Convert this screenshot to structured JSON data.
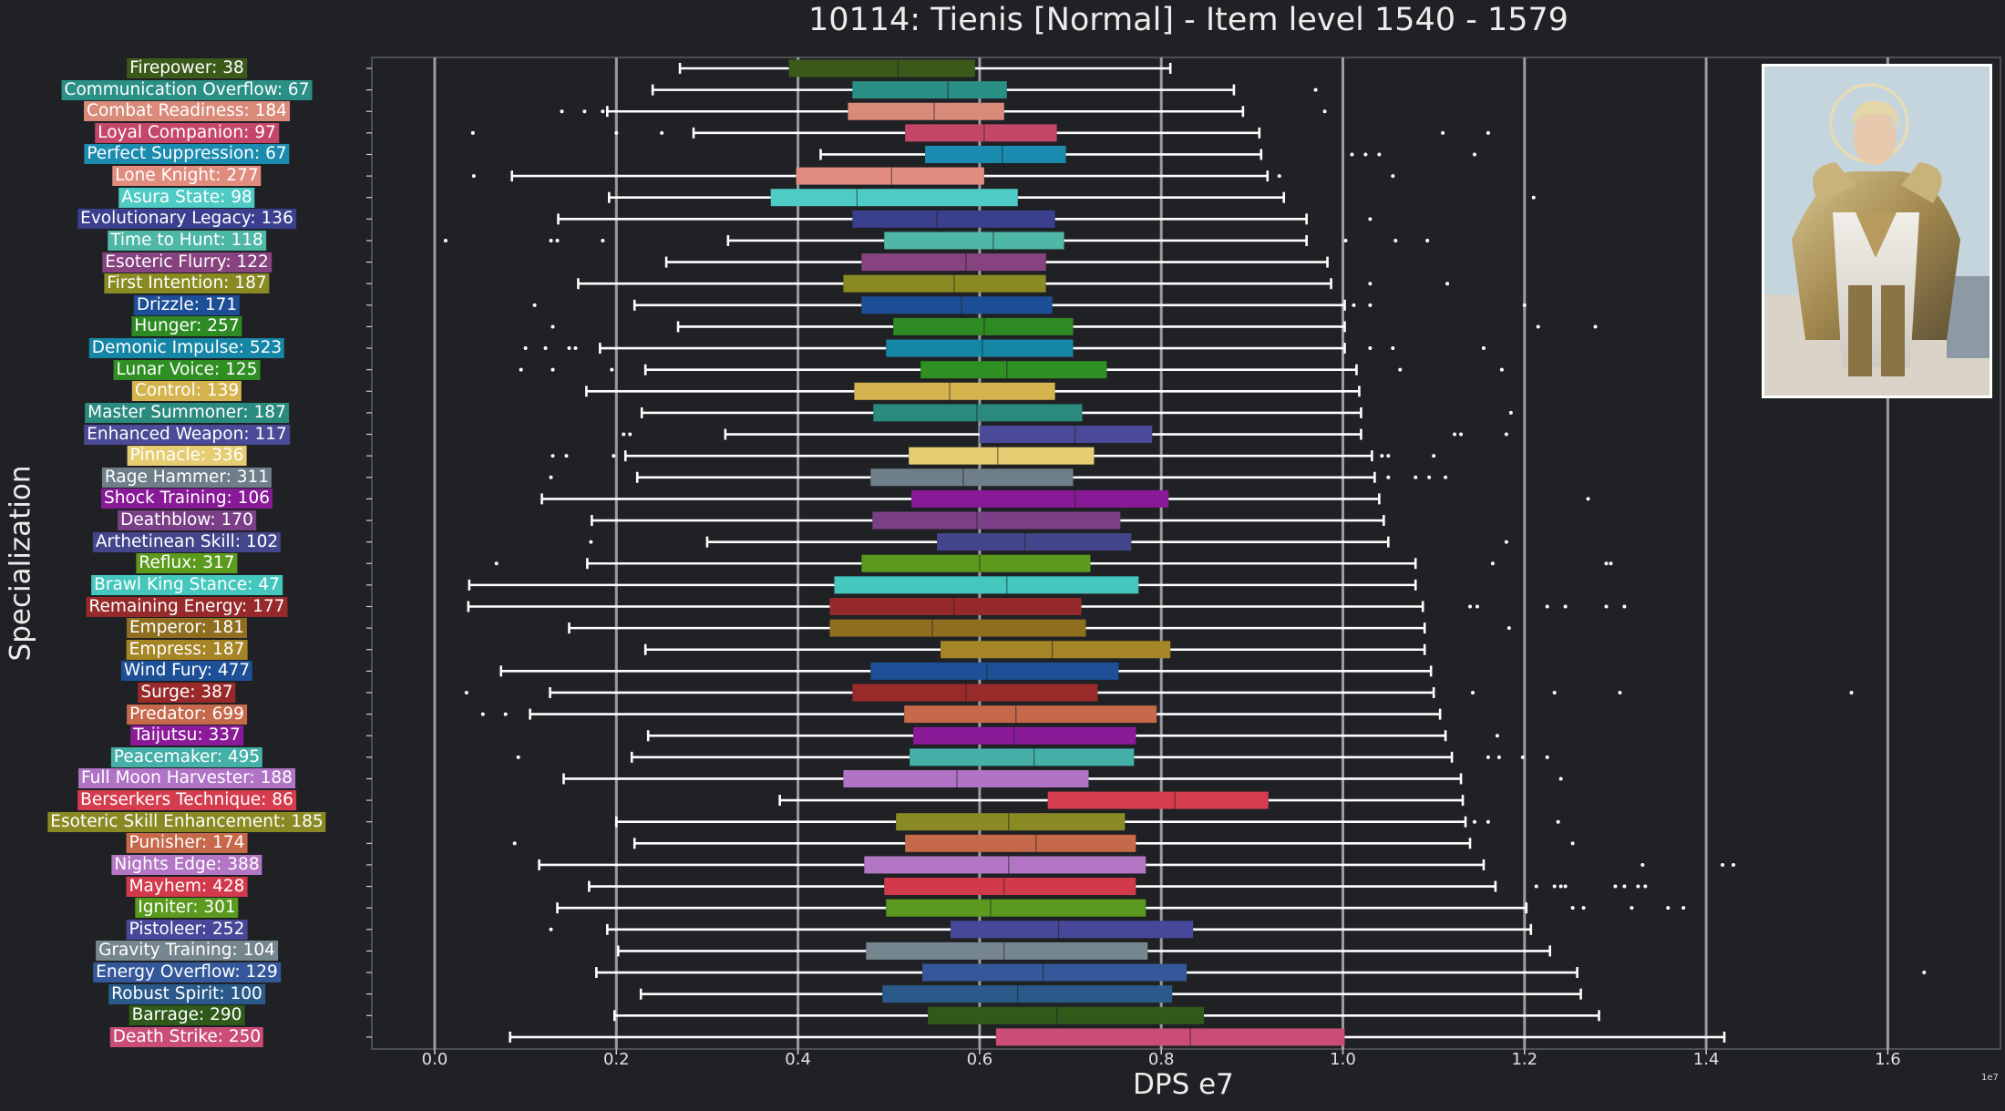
{
  "title": "10114: Tienis [Normal] - Item level 1540 - 1579",
  "chart_data": {
    "type": "box",
    "orientation": "horizontal",
    "xlabel": "DPS e7",
    "ylabel": "Specialization",
    "x_exponent_label": "1e7",
    "xlim": [
      -0.07,
      1.72
    ],
    "x_ticks": [
      0.0,
      0.2,
      0.4,
      0.6,
      0.8,
      1.0,
      1.2,
      1.4,
      1.6
    ],
    "x_tick_labels": [
      "0.0",
      "0.2",
      "0.4",
      "0.6",
      "0.8",
      "1.0",
      "1.2",
      "1.4",
      "1.6"
    ],
    "vertical_lines": [
      0.0,
      0.2,
      0.4,
      0.6,
      0.8,
      1.0,
      1.2,
      1.4,
      1.6
    ],
    "grid": false,
    "background": "#1f2124",
    "whisker_color": "#ffffff",
    "series": [
      {
        "label": "Firepower: 38",
        "color": "#3b5a1a",
        "whislo": 0.27,
        "q1": 0.39,
        "med": 0.51,
        "q3": 0.595,
        "whishi": 0.81,
        "fliers": []
      },
      {
        "label": "Communication Overflow: 67",
        "color": "#2a8f85",
        "whislo": 0.24,
        "q1": 0.46,
        "med": 0.565,
        "q3": 0.63,
        "whishi": 0.88,
        "fliers": [
          0.97
        ]
      },
      {
        "label": "Combat Readiness: 184",
        "color": "#d98a78",
        "whislo": 0.19,
        "q1": 0.455,
        "med": 0.55,
        "q3": 0.627,
        "whishi": 0.89,
        "fliers": [
          0.14,
          0.165,
          0.185,
          0.98
        ]
      },
      {
        "label": "Loyal Companion: 97",
        "color": "#c4476a",
        "whislo": 0.285,
        "q1": 0.518,
        "med": 0.605,
        "q3": 0.685,
        "whishi": 0.908,
        "fliers": [
          0.042,
          0.2,
          0.25,
          1.11,
          1.16
        ]
      },
      {
        "label": "Perfect Suppression: 67",
        "color": "#1b8bb0",
        "whislo": 0.425,
        "q1": 0.54,
        "med": 0.625,
        "q3": 0.695,
        "whishi": 0.91,
        "fliers": [
          1.01,
          1.025,
          1.04,
          1.145
        ]
      },
      {
        "label": "Lone Knight: 277",
        "color": "#e08c7e",
        "whislo": 0.085,
        "q1": 0.398,
        "med": 0.503,
        "q3": 0.605,
        "whishi": 0.917,
        "fliers": [
          0.043,
          0.93,
          1.055
        ]
      },
      {
        "label": "Asura State: 98",
        "color": "#4ecbc4",
        "whislo": 0.192,
        "q1": 0.37,
        "med": 0.465,
        "q3": 0.642,
        "whishi": 0.935,
        "fliers": [
          1.21
        ]
      },
      {
        "label": "Evolutionary Legacy: 136",
        "color": "#3a3f8e",
        "whislo": 0.136,
        "q1": 0.46,
        "med": 0.553,
        "q3": 0.683,
        "whishi": 0.96,
        "fliers": [
          1.03
        ]
      },
      {
        "label": "Time to Hunt: 118",
        "color": "#4fb7a6",
        "whislo": 0.323,
        "q1": 0.495,
        "med": 0.615,
        "q3": 0.693,
        "whishi": 0.96,
        "fliers": [
          0.012,
          0.128,
          0.135,
          0.185,
          1.003,
          1.058,
          1.093
        ]
      },
      {
        "label": "Esoteric Flurry: 122",
        "color": "#87437f",
        "whislo": 0.255,
        "q1": 0.47,
        "med": 0.585,
        "q3": 0.673,
        "whishi": 0.983,
        "fliers": []
      },
      {
        "label": "First Intention: 187",
        "color": "#8a8a22",
        "whislo": 0.158,
        "q1": 0.45,
        "med": 0.572,
        "q3": 0.673,
        "whishi": 0.987,
        "fliers": [
          1.03,
          1.115
        ]
      },
      {
        "label": "Drizzle: 171",
        "color": "#1d4f96",
        "whislo": 0.22,
        "q1": 0.47,
        "med": 0.58,
        "q3": 0.68,
        "whishi": 1.002,
        "fliers": [
          0.11,
          1.012,
          1.03,
          1.2
        ]
      },
      {
        "label": "Hunger: 257",
        "color": "#2e8a22",
        "whislo": 0.268,
        "q1": 0.505,
        "med": 0.605,
        "q3": 0.703,
        "whishi": 1.002,
        "fliers": [
          0.13,
          1.215,
          1.278
        ]
      },
      {
        "label": "Demonic Impulse: 523",
        "color": "#1686a6",
        "whislo": 0.182,
        "q1": 0.497,
        "med": 0.603,
        "q3": 0.703,
        "whishi": 1.002,
        "fliers": [
          0.1,
          0.122,
          0.148,
          0.155,
          1.03,
          1.055,
          1.155
        ]
      },
      {
        "label": "Lunar Voice: 125",
        "color": "#2f8f23",
        "whislo": 0.232,
        "q1": 0.535,
        "med": 0.63,
        "q3": 0.74,
        "whishi": 1.015,
        "fliers": [
          0.095,
          0.13,
          0.195,
          1.063,
          1.175
        ]
      },
      {
        "label": "Control: 139",
        "color": "#d5b34e",
        "whislo": 0.167,
        "q1": 0.462,
        "med": 0.567,
        "q3": 0.683,
        "whishi": 1.018,
        "fliers": []
      },
      {
        "label": "Master Summoner: 187",
        "color": "#2a8a7e",
        "whislo": 0.228,
        "q1": 0.483,
        "med": 0.597,
        "q3": 0.713,
        "whishi": 1.02,
        "fliers": [
          1.185
        ]
      },
      {
        "label": "Enhanced Weapon: 117",
        "color": "#4a4a98",
        "whislo": 0.32,
        "q1": 0.6,
        "med": 0.705,
        "q3": 0.79,
        "whishi": 1.02,
        "fliers": [
          0.208,
          0.215,
          1.123,
          1.13,
          1.18
        ]
      },
      {
        "label": "Pinnacle: 336",
        "color": "#e6cc72",
        "whislo": 0.21,
        "q1": 0.522,
        "med": 0.62,
        "q3": 0.726,
        "whishi": 1.032,
        "fliers": [
          0.13,
          0.145,
          0.197,
          1.043,
          1.05,
          1.1
        ]
      },
      {
        "label": "Rage Hammer: 311",
        "color": "#6f7f8a",
        "whislo": 0.223,
        "q1": 0.48,
        "med": 0.582,
        "q3": 0.703,
        "whishi": 1.035,
        "fliers": [
          0.128,
          1.05,
          1.08,
          1.095,
          1.113
        ]
      },
      {
        "label": "Shock Training: 106",
        "color": "#881a98",
        "whislo": 0.118,
        "q1": 0.525,
        "med": 0.705,
        "q3": 0.808,
        "whishi": 1.04,
        "fliers": [
          1.27
        ]
      },
      {
        "label": "Deathblow: 170",
        "color": "#7b3f88",
        "whislo": 0.173,
        "q1": 0.482,
        "med": 0.597,
        "q3": 0.755,
        "whishi": 1.045,
        "fliers": []
      },
      {
        "label": "Arthetinean Skill: 102",
        "color": "#44468c",
        "whislo": 0.3,
        "q1": 0.553,
        "med": 0.65,
        "q3": 0.767,
        "whishi": 1.05,
        "fliers": [
          0.172,
          1.18
        ]
      },
      {
        "label": "Reflux: 317",
        "color": "#5c9a1e",
        "whislo": 0.168,
        "q1": 0.47,
        "med": 0.6,
        "q3": 0.722,
        "whishi": 1.08,
        "fliers": [
          0.068,
          1.165,
          1.29,
          1.295
        ]
      },
      {
        "label": "Brawl King Stance: 47",
        "color": "#45c7be",
        "whislo": 0.038,
        "q1": 0.44,
        "med": 0.63,
        "q3": 0.775,
        "whishi": 1.08,
        "fliers": []
      },
      {
        "label": "Remaining Energy: 177",
        "color": "#962a2a",
        "whislo": 0.037,
        "q1": 0.435,
        "med": 0.572,
        "q3": 0.712,
        "whishi": 1.088,
        "fliers": [
          1.14,
          1.148,
          1.225,
          1.245,
          1.29,
          1.31
        ]
      },
      {
        "label": "Emperor: 181",
        "color": "#8f6e20",
        "whislo": 0.148,
        "q1": 0.435,
        "med": 0.548,
        "q3": 0.717,
        "whishi": 1.09,
        "fliers": [
          1.183
        ]
      },
      {
        "label": "Empress: 187",
        "color": "#a68526",
        "whislo": 0.232,
        "q1": 0.557,
        "med": 0.68,
        "q3": 0.81,
        "whishi": 1.09,
        "fliers": []
      },
      {
        "label": "Wind Fury: 477",
        "color": "#1d5096",
        "whislo": 0.073,
        "q1": 0.48,
        "med": 0.608,
        "q3": 0.753,
        "whishi": 1.097,
        "fliers": []
      },
      {
        "label": "Surge: 387",
        "color": "#9a2a2a",
        "whislo": 0.127,
        "q1": 0.46,
        "med": 0.585,
        "q3": 0.73,
        "whishi": 1.1,
        "fliers": [
          0.035,
          1.143,
          1.233,
          1.305,
          1.56
        ]
      },
      {
        "label": "Predator: 699",
        "color": "#c6684a",
        "whislo": 0.105,
        "q1": 0.517,
        "med": 0.64,
        "q3": 0.795,
        "whishi": 1.107,
        "fliers": [
          0.053,
          0.078
        ]
      },
      {
        "label": "Taijutsu: 337",
        "color": "#8b1a98",
        "whislo": 0.235,
        "q1": 0.527,
        "med": 0.638,
        "q3": 0.772,
        "whishi": 1.113,
        "fliers": [
          1.17
        ]
      },
      {
        "label": "Peacemaker: 495",
        "color": "#45b0a8",
        "whislo": 0.217,
        "q1": 0.523,
        "med": 0.66,
        "q3": 0.77,
        "whishi": 1.12,
        "fliers": [
          0.092,
          1.16,
          1.172,
          1.198,
          1.225
        ]
      },
      {
        "label": "Full Moon Harvester: 188",
        "color": "#b073c6",
        "whislo": 0.142,
        "q1": 0.45,
        "med": 0.575,
        "q3": 0.72,
        "whishi": 1.13,
        "fliers": [
          1.24
        ]
      },
      {
        "label": "Berserkers Technique: 86",
        "color": "#d53c4e",
        "whislo": 0.38,
        "q1": 0.675,
        "med": 0.815,
        "q3": 0.918,
        "whishi": 1.132,
        "fliers": []
      },
      {
        "label": "Esoteric Skill Enhancement: 185",
        "color": "#8a8a24",
        "whislo": 0.2,
        "q1": 0.508,
        "med": 0.632,
        "q3": 0.76,
        "whishi": 1.135,
        "fliers": [
          1.145,
          1.16,
          1.237
        ]
      },
      {
        "label": "Punisher: 174",
        "color": "#c6684a",
        "whislo": 0.22,
        "q1": 0.518,
        "med": 0.662,
        "q3": 0.772,
        "whishi": 1.14,
        "fliers": [
          0.088,
          1.253
        ]
      },
      {
        "label": "Nights Edge: 388",
        "color": "#b376c4",
        "whislo": 0.115,
        "q1": 0.473,
        "med": 0.632,
        "q3": 0.783,
        "whishi": 1.155,
        "fliers": [
          1.33,
          1.418,
          1.43
        ]
      },
      {
        "label": "Mayhem: 428",
        "color": "#d23a4c",
        "whislo": 0.17,
        "q1": 0.495,
        "med": 0.627,
        "q3": 0.772,
        "whishi": 1.168,
        "fliers": [
          1.213,
          1.233,
          1.24,
          1.245,
          1.3,
          1.31,
          1.325,
          1.333
        ]
      },
      {
        "label": "Igniter: 301",
        "color": "#5a9a1e",
        "whislo": 0.135,
        "q1": 0.497,
        "med": 0.612,
        "q3": 0.783,
        "whishi": 1.202,
        "fliers": [
          1.253,
          1.265,
          1.318,
          1.358,
          1.375
        ]
      },
      {
        "label": "Pistoleer: 252",
        "color": "#48489a",
        "whislo": 0.19,
        "q1": 0.568,
        "med": 0.687,
        "q3": 0.835,
        "whishi": 1.207,
        "fliers": [
          0.128
        ]
      },
      {
        "label": "Gravity Training: 104",
        "color": "#76868e",
        "whislo": 0.202,
        "q1": 0.475,
        "med": 0.627,
        "q3": 0.785,
        "whishi": 1.228,
        "fliers": []
      },
      {
        "label": "Energy Overflow: 129",
        "color": "#34589a",
        "whislo": 0.178,
        "q1": 0.537,
        "med": 0.67,
        "q3": 0.828,
        "whishi": 1.258,
        "fliers": [
          1.64
        ]
      },
      {
        "label": "Robust Spirit: 100",
        "color": "#2a5a8a",
        "whislo": 0.227,
        "q1": 0.493,
        "med": 0.642,
        "q3": 0.812,
        "whishi": 1.262,
        "fliers": []
      },
      {
        "label": "Barrage: 290",
        "color": "#2f5a1a",
        "whislo": 0.198,
        "q1": 0.543,
        "med": 0.685,
        "q3": 0.847,
        "whishi": 1.282,
        "fliers": []
      },
      {
        "label": "Death Strike: 250",
        "color": "#c94d77",
        "whislo": 0.083,
        "q1": 0.618,
        "med": 0.832,
        "q3": 1.002,
        "whishi": 1.42,
        "fliers": []
      }
    ]
  }
}
